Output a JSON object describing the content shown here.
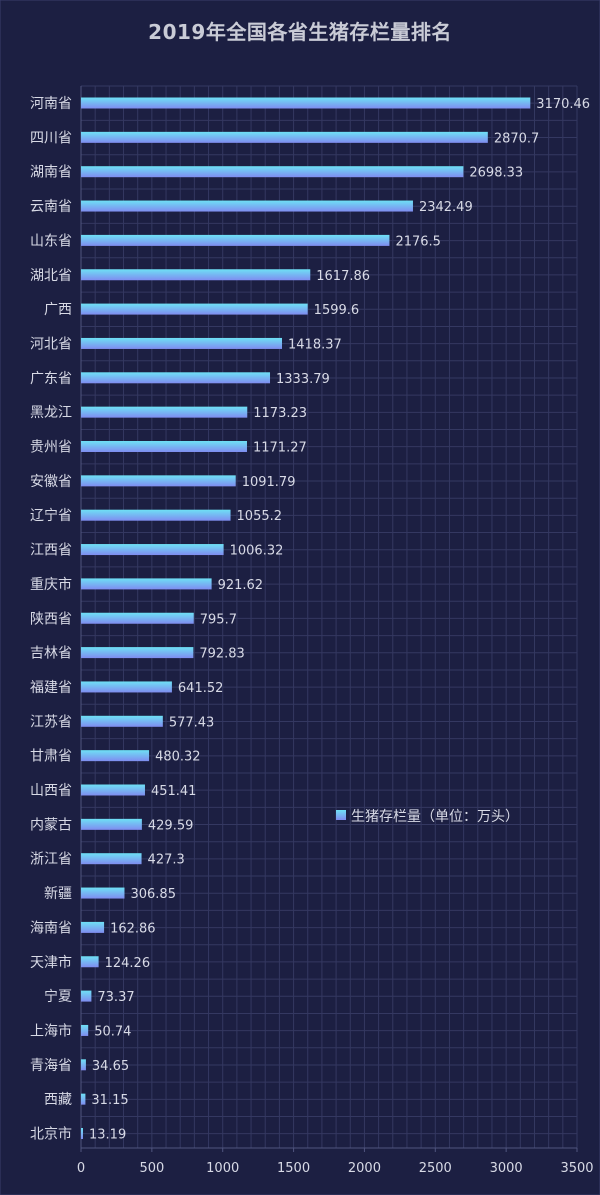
{
  "chart_data": {
    "type": "bar",
    "orientation": "horizontal",
    "title": "2019年全国各省生猪存栏量排名",
    "categories": [
      "河南省",
      "四川省",
      "湖南省",
      "云南省",
      "山东省",
      "湖北省",
      "广西",
      "河北省",
      "广东省",
      "黑龙江",
      "贵州省",
      "安徽省",
      "辽宁省",
      "江西省",
      "重庆市",
      "陕西省",
      "吉林省",
      "福建省",
      "江苏省",
      "甘肃省",
      "山西省",
      "内蒙古",
      "浙江省",
      "新疆",
      "海南省",
      "天津市",
      "宁夏",
      "上海市",
      "青海省",
      "西藏",
      "北京市"
    ],
    "series": [
      {
        "name": "生猪存栏量（单位：万头）",
        "values": [
          3170.46,
          2870.7,
          2698.33,
          2342.49,
          2176.5,
          1617.86,
          1599.6,
          1418.37,
          1333.79,
          1173.23,
          1171.27,
          1091.79,
          1055.2,
          1006.32,
          921.62,
          795.7,
          792.83,
          641.52,
          577.43,
          480.32,
          451.41,
          429.59,
          427.3,
          306.85,
          162.86,
          124.26,
          73.37,
          50.74,
          34.65,
          31.15,
          13.19
        ],
        "labels": [
          "3170.46",
          "2870.7",
          "2698.33",
          "2342.49",
          "2176.5",
          "1617.86",
          "1599.6",
          "1418.37",
          "1333.79",
          "1173.23",
          "1171.27",
          "1091.79",
          "1055.2",
          "1006.32",
          "921.62",
          "795.7",
          "792.83",
          "641.52",
          "577.43",
          "480.32",
          "451.41",
          "429.59",
          "427.3",
          "306.85",
          "162.86",
          "124.26",
          "73.37",
          "50.74",
          "34.65",
          "31.15",
          "13.19"
        ]
      }
    ],
    "xlim": [
      0,
      3500
    ],
    "xticks": [
      "0",
      "500",
      "1000",
      "1500",
      "2000",
      "2500",
      "3000",
      "3500"
    ],
    "grid": true,
    "legend": {
      "label": "生猪存栏量（单位：万头）",
      "position": "center-right"
    },
    "colors": {
      "background": "#1c1f42",
      "grid": "#3a3e6a",
      "bar_top": "#6ee0f5",
      "bar_bottom": "#7f8cf0",
      "text": "#d8dae6"
    }
  }
}
